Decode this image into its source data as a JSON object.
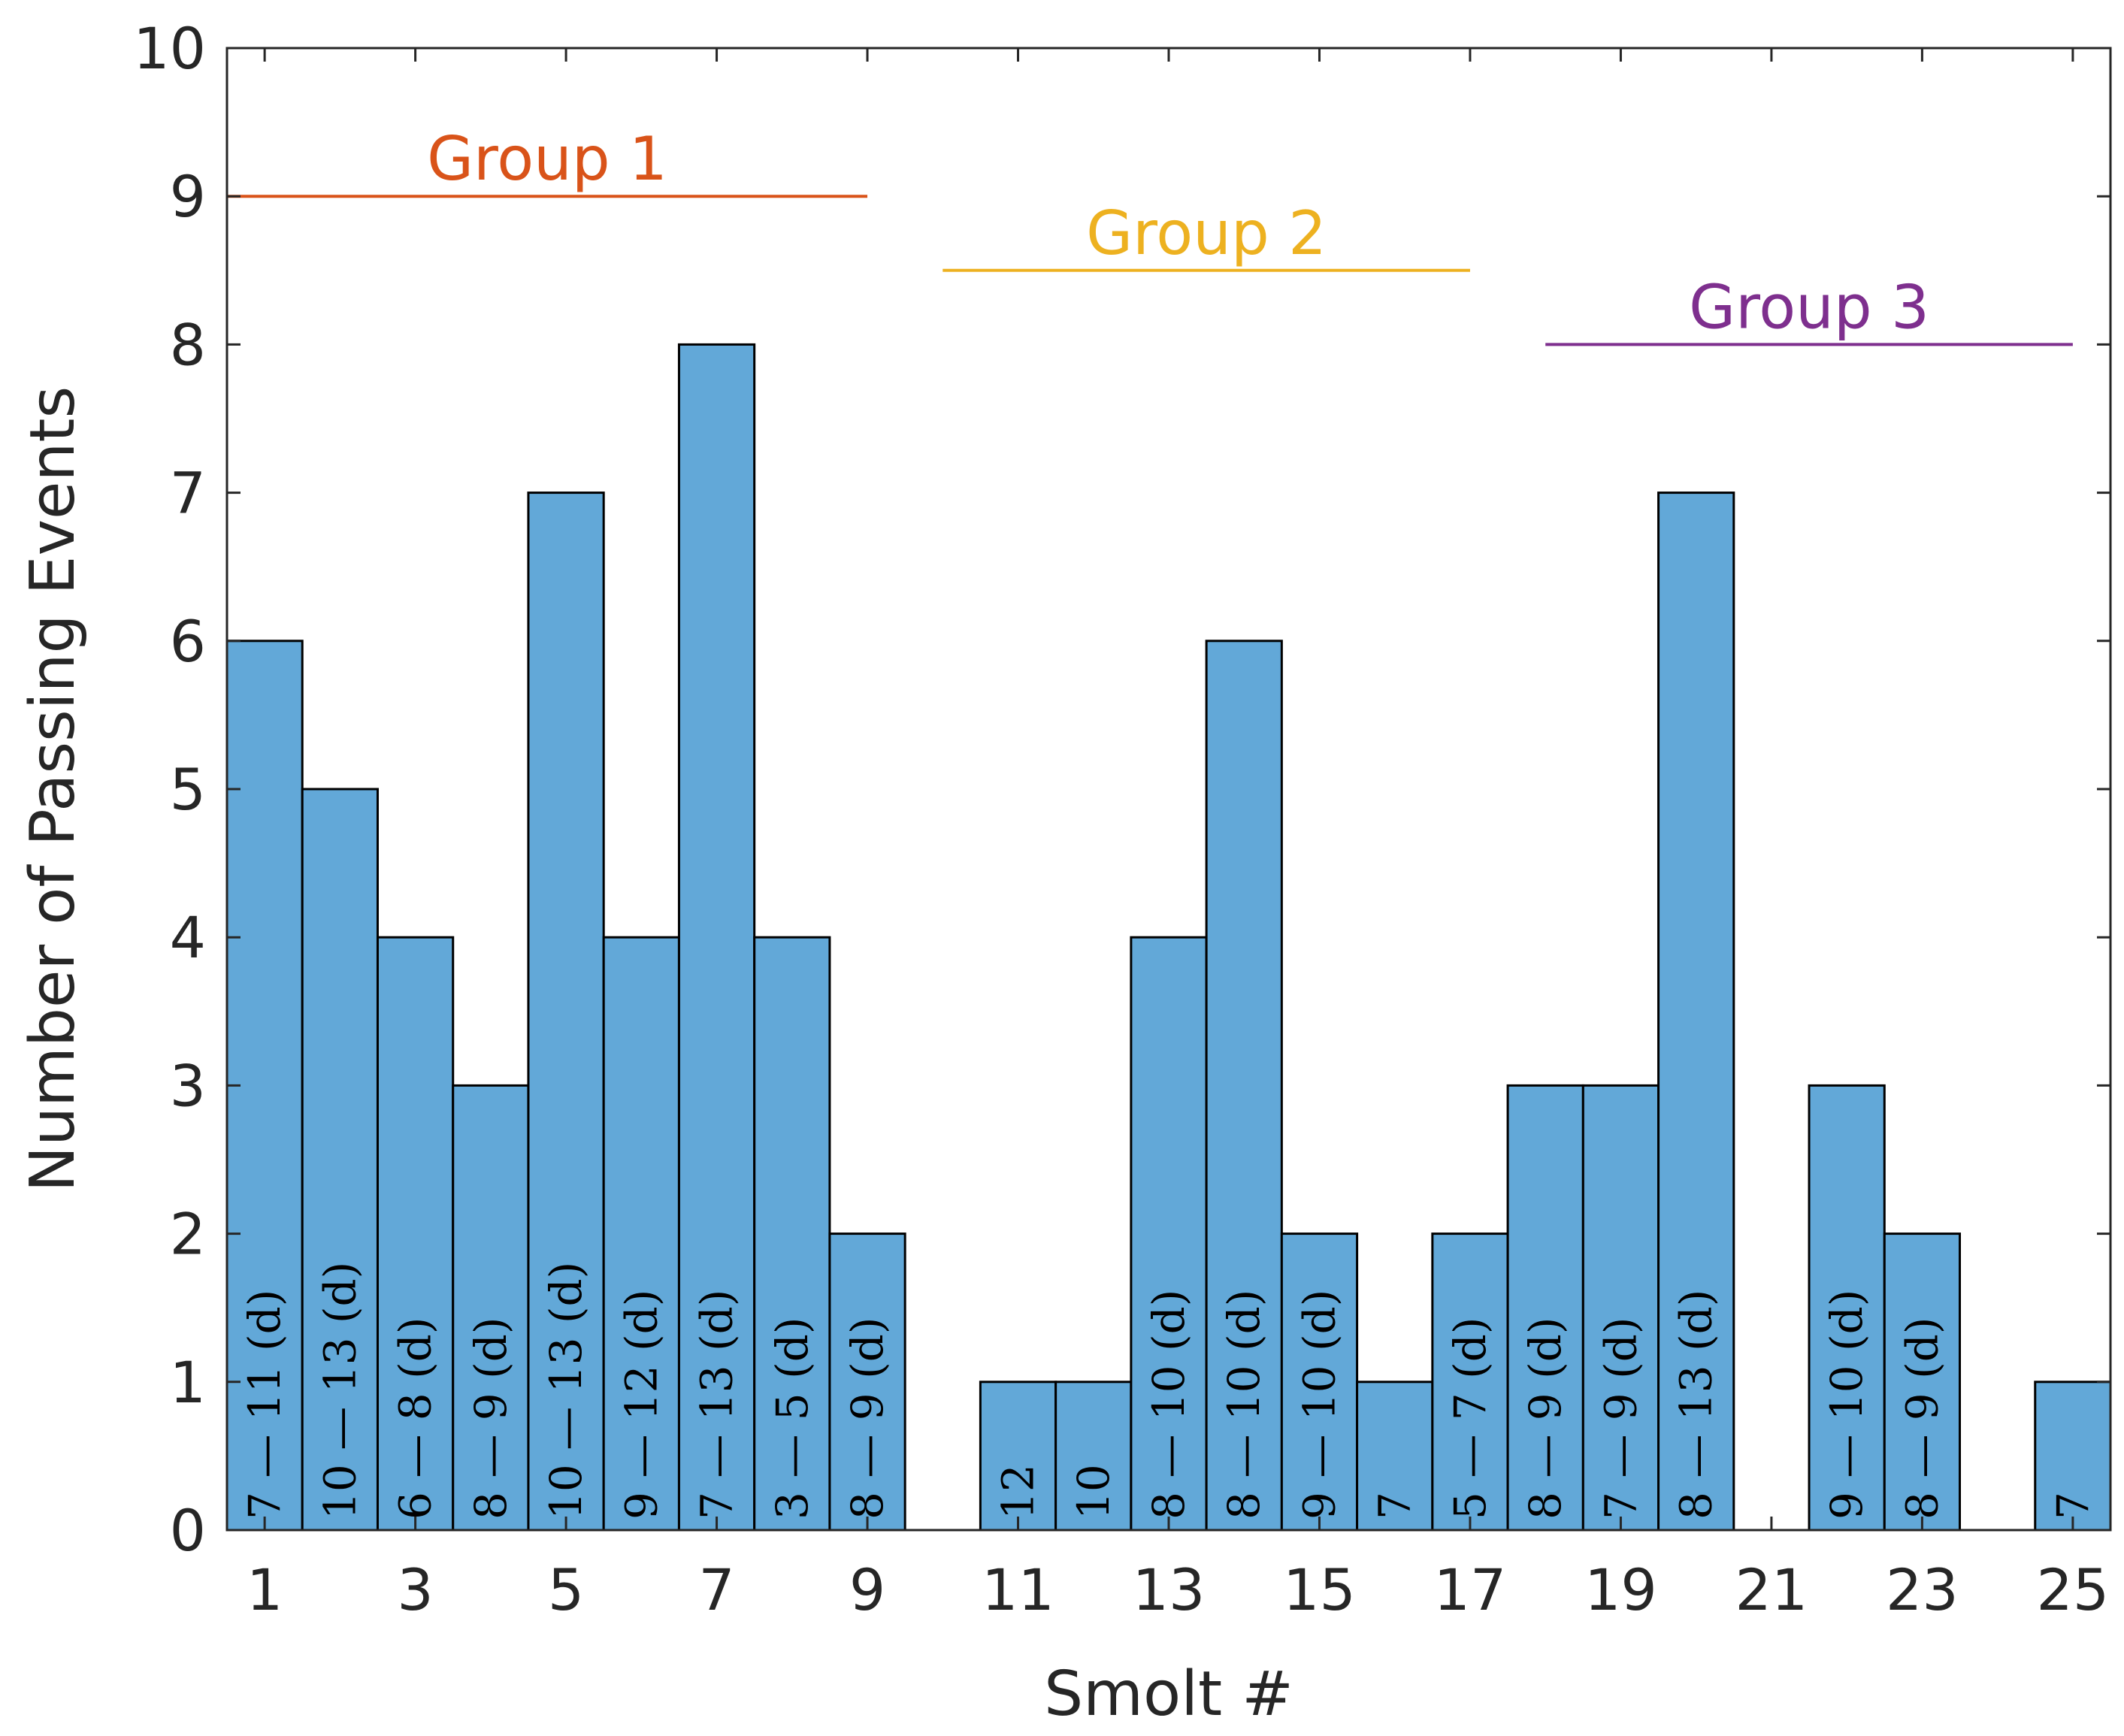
{
  "chart_data": {
    "type": "bar",
    "title": "",
    "xlabel": "Smolt #",
    "ylabel": "Number of Passing Events",
    "xlim": [
      0.5,
      25.5
    ],
    "ylim": [
      0,
      10
    ],
    "x_ticks": [
      1,
      3,
      5,
      7,
      9,
      11,
      13,
      15,
      17,
      19,
      21,
      23,
      25
    ],
    "y_ticks": [
      0,
      1,
      2,
      3,
      4,
      5,
      6,
      7,
      8,
      9,
      10
    ],
    "x": [
      1,
      2,
      3,
      4,
      5,
      6,
      7,
      8,
      9,
      10,
      11,
      12,
      13,
      14,
      15,
      16,
      17,
      18,
      19,
      20,
      21,
      22,
      23,
      24,
      25
    ],
    "values": [
      6,
      5,
      4,
      3,
      7,
      4,
      8,
      4,
      2,
      0,
      1,
      1,
      4,
      6,
      2,
      1,
      2,
      3,
      3,
      7,
      0,
      3,
      2,
      0,
      1
    ],
    "bar_labels": [
      "7 — 11 (d)",
      "10 — 13 (d)",
      "6 — 8 (d)",
      "8 — 9 (d)",
      "10 — 13 (d)",
      "9 — 12 (d)",
      "7 — 13 (d)",
      "3 — 5 (d)",
      "8 — 9 (d)",
      "",
      "12",
      "10",
      "8 — 10 (d)",
      "8 — 10 (d)",
      "9 — 10 (d)",
      "7",
      "5 — 7 (d)",
      "8 — 9 (d)",
      "7 — 9 (d)",
      "8 — 13 (d)",
      "",
      "9 — 10 (d)",
      "8 — 9 (d)",
      "",
      "7"
    ],
    "bar_color": "#62a8d8",
    "groups": [
      {
        "label": "Group 1",
        "x_start": 0.5,
        "x_end": 9.0,
        "y": 9.0,
        "color": "#d95319"
      },
      {
        "label": "Group 2",
        "x_start": 10.0,
        "x_end": 17.0,
        "y": 8.5,
        "color": "#edb120"
      },
      {
        "label": "Group 3",
        "x_start": 18.0,
        "x_end": 25.0,
        "y": 8.0,
        "color": "#7e2f8e"
      }
    ]
  }
}
